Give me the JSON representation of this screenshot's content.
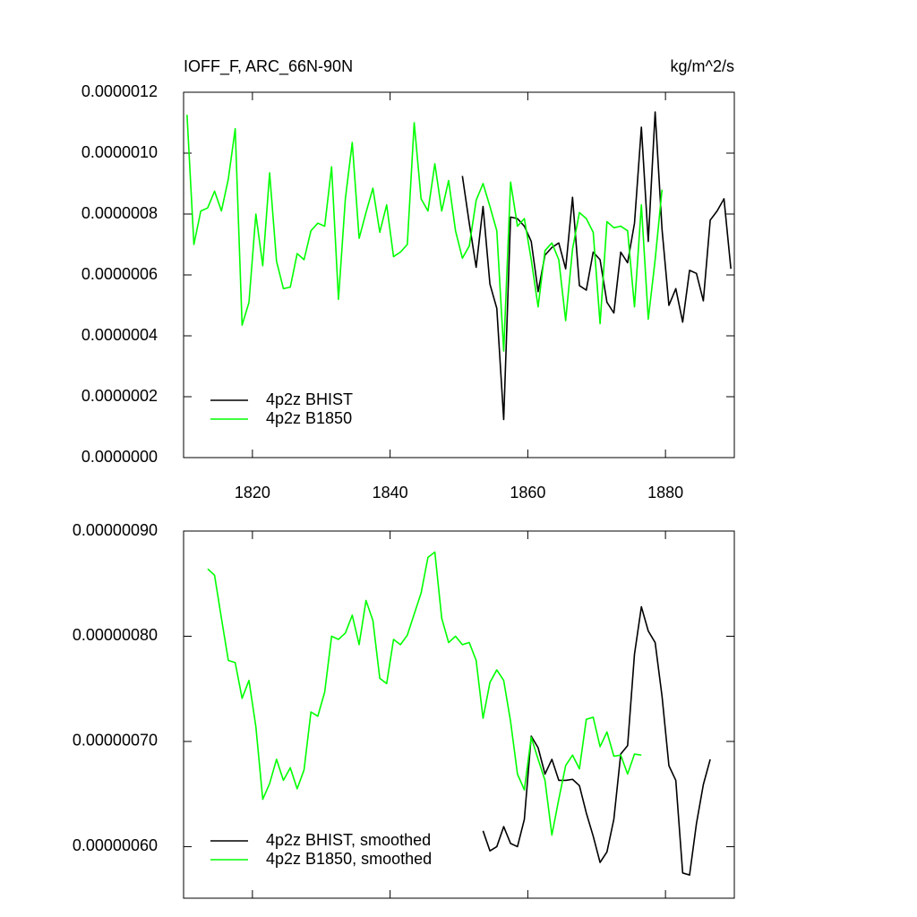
{
  "chart_data": [
    {
      "type": "line",
      "title": "IOFF_F, ARC_66N-90N",
      "units": "kg/m^2/s",
      "xlim": [
        1810,
        1890
      ],
      "ylim": [
        0,
        1.2e-06
      ],
      "xticks": [
        1820,
        1840,
        1860,
        1880
      ],
      "xtick_labels": true,
      "yticks": [
        {
          "value": 0,
          "label": "0.0000000"
        },
        {
          "value": 2e-07,
          "label": "0.0000002"
        },
        {
          "value": 4e-07,
          "label": "0.0000004"
        },
        {
          "value": 6e-07,
          "label": "0.0000006"
        },
        {
          "value": 8e-07,
          "label": "0.0000008"
        },
        {
          "value": 1e-06,
          "label": "0.0000010"
        },
        {
          "value": 1.2e-06,
          "label": "0.0000012"
        }
      ],
      "legend": "lower left",
      "series": [
        {
          "name": "4p2z BHIST",
          "color": "#000000",
          "x": [
            1850.5,
            1851.5,
            1852.5,
            1853.5,
            1854.5,
            1855.5,
            1856.5,
            1857.5,
            1858.5,
            1859.5,
            1860.5,
            1861.5,
            1862.5,
            1863.5,
            1864.5,
            1865.5,
            1866.5,
            1867.5,
            1868.5,
            1869.5,
            1870.5,
            1871.5,
            1872.5,
            1873.5,
            1874.5,
            1875.5,
            1876.5,
            1877.5,
            1878.5,
            1879.5,
            1880.5,
            1881.5,
            1882.5,
            1883.5,
            1884.5,
            1885.5,
            1886.5,
            1887.5,
            1888.5,
            1889.5
          ],
          "values": [
            9.25e-07,
            7.7e-07,
            6.25e-07,
            8.25e-07,
            5.7e-07,
            4.9e-07,
            1.25e-07,
            7.9e-07,
            7.85e-07,
            7.6e-07,
            7.1e-07,
            5.45e-07,
            6.65e-07,
            6.9e-07,
            7.05e-07,
            6.2e-07,
            8.55e-07,
            5.65e-07,
            5.5e-07,
            6.75e-07,
            6.5e-07,
            5.1e-07,
            4.75e-07,
            6.75e-07,
            6.4e-07,
            7.7e-07,
            1.085e-06,
            7.1e-07,
            1.135e-06,
            7.5e-07,
            5e-07,
            5.55e-07,
            4.45e-07,
            6.15e-07,
            6.05e-07,
            5.15e-07,
            7.8e-07,
            8.1e-07,
            8.5e-07,
            6.2e-07
          ]
        },
        {
          "name": "4p2z B1850",
          "color": "#00ff00",
          "x": [
            1810.5,
            1811.5,
            1812.5,
            1813.5,
            1814.5,
            1815.5,
            1816.5,
            1817.5,
            1818.5,
            1819.5,
            1820.5,
            1821.5,
            1822.5,
            1823.5,
            1824.5,
            1825.5,
            1826.5,
            1827.5,
            1828.5,
            1829.5,
            1830.5,
            1831.5,
            1832.5,
            1833.5,
            1834.5,
            1835.5,
            1836.5,
            1837.5,
            1838.5,
            1839.5,
            1840.5,
            1841.5,
            1842.5,
            1843.5,
            1844.5,
            1845.5,
            1846.5,
            1847.5,
            1848.5,
            1849.5,
            1850.5,
            1851.5,
            1852.5,
            1853.5,
            1854.5,
            1855.5,
            1856.5,
            1857.5,
            1858.5,
            1859.5,
            1860.5,
            1861.5,
            1862.5,
            1863.5,
            1864.5,
            1865.5,
            1866.5,
            1867.5,
            1868.5,
            1869.5,
            1870.5,
            1871.5,
            1872.5,
            1873.5,
            1874.5,
            1875.5,
            1876.5,
            1877.5,
            1878.5,
            1879.5
          ],
          "values": [
            1.126e-06,
            7e-07,
            8.1e-07,
            8.2e-07,
            8.75e-07,
            8.1e-07,
            9.15e-07,
            1.08e-06,
            4.35e-07,
            5.1e-07,
            8e-07,
            6.3e-07,
            9.35e-07,
            6.45e-07,
            5.55e-07,
            5.6e-07,
            6.7e-07,
            6.5e-07,
            7.45e-07,
            7.7e-07,
            7.6e-07,
            9.55e-07,
            5.2e-07,
            8.5e-07,
            1.035e-06,
            7.2e-07,
            8.05e-07,
            8.85e-07,
            7.4e-07,
            8.3e-07,
            6.6e-07,
            6.75e-07,
            7e-07,
            1.1e-06,
            8.5e-07,
            8.1e-07,
            9.65e-07,
            8.1e-07,
            9.1e-07,
            7.45e-07,
            6.55e-07,
            6.95e-07,
            8.45e-07,
            9e-07,
            8.25e-07,
            7.45e-07,
            3.5e-07,
            9.05e-07,
            7.6e-07,
            7.85e-07,
            6.5e-07,
            4.95e-07,
            6.8e-07,
            7.05e-07,
            6.5e-07,
            4.5e-07,
            6.85e-07,
            8.05e-07,
            7.85e-07,
            7.4e-07,
            4.4e-07,
            7.75e-07,
            7.55e-07,
            7.6e-07,
            7.45e-07,
            4.95e-07,
            8.3e-07,
            4.55e-07,
            6.5e-07,
            8.8e-07
          ]
        }
      ]
    },
    {
      "type": "line",
      "xlim": [
        1810,
        1890
      ],
      "ylim": [
        5.51e-07,
        9e-07
      ],
      "xticks": [
        1820,
        1840,
        1860,
        1880
      ],
      "xtick_labels": false,
      "yticks": [
        {
          "value": 6e-07,
          "label": "0.00000060"
        },
        {
          "value": 7e-07,
          "label": "0.00000070"
        },
        {
          "value": 8e-07,
          "label": "0.00000080"
        },
        {
          "value": 9e-07,
          "label": "0.00000090"
        }
      ],
      "legend": "lower left",
      "series": [
        {
          "name": "4p2z BHIST, smoothed",
          "color": "#000000",
          "x": [
            1853.5,
            1854.5,
            1855.5,
            1856.5,
            1857.5,
            1858.5,
            1859.5,
            1860.5,
            1861.5,
            1862.5,
            1863.5,
            1864.5,
            1865.5,
            1866.5,
            1867.5,
            1868.5,
            1869.5,
            1870.5,
            1871.5,
            1872.5,
            1873.5,
            1874.5,
            1875.5,
            1876.5,
            1877.5,
            1878.5,
            1879.5,
            1880.5,
            1881.5,
            1882.5,
            1883.5,
            1884.5,
            1885.5,
            1886.5
          ],
          "values": [
            6.15e-07,
            5.96e-07,
            6e-07,
            6.19e-07,
            6.03e-07,
            6e-07,
            6.26e-07,
            7.05e-07,
            6.94e-07,
            6.69e-07,
            6.83e-07,
            6.63e-07,
            6.63e-07,
            6.64e-07,
            6.58e-07,
            6.32e-07,
            6.1e-07,
            5.85e-07,
            5.95e-07,
            6.26e-07,
            6.88e-07,
            6.96e-07,
            7.83e-07,
            8.28e-07,
            8.05e-07,
            7.94e-07,
            7.43e-07,
            6.77e-07,
            6.63e-07,
            5.75e-07,
            5.73e-07,
            6.22e-07,
            6.59e-07,
            6.83e-07
          ]
        },
        {
          "name": "4p2z B1850, smoothed",
          "color": "#00ff00",
          "x": [
            1813.5,
            1814.5,
            1815.5,
            1816.5,
            1817.5,
            1818.5,
            1819.5,
            1820.5,
            1821.5,
            1822.5,
            1823.5,
            1824.5,
            1825.5,
            1826.5,
            1827.5,
            1828.5,
            1829.5,
            1830.5,
            1831.5,
            1832.5,
            1833.5,
            1834.5,
            1835.5,
            1836.5,
            1837.5,
            1838.5,
            1839.5,
            1840.5,
            1841.5,
            1842.5,
            1843.5,
            1844.5,
            1845.5,
            1846.5,
            1847.5,
            1848.5,
            1849.5,
            1850.5,
            1851.5,
            1852.5,
            1853.5,
            1854.5,
            1855.5,
            1856.5,
            1857.5,
            1858.5,
            1859.5,
            1860.5,
            1861.5,
            1862.5,
            1863.5,
            1864.5,
            1865.5,
            1866.5,
            1867.5,
            1868.5,
            1869.5,
            1870.5,
            1871.5,
            1872.5,
            1873.5,
            1874.5,
            1875.5,
            1876.5
          ],
          "values": [
            8.64e-07,
            8.58e-07,
            8.17e-07,
            7.77e-07,
            7.75e-07,
            7.41e-07,
            7.58e-07,
            7.14e-07,
            6.45e-07,
            6.6e-07,
            6.83e-07,
            6.63e-07,
            6.75e-07,
            6.55e-07,
            6.73e-07,
            7.28e-07,
            7.24e-07,
            7.47e-07,
            8e-07,
            7.97e-07,
            8.03e-07,
            8.2e-07,
            7.92e-07,
            8.34e-07,
            8.15e-07,
            7.6e-07,
            7.55e-07,
            7.97e-07,
            7.92e-07,
            8.01e-07,
            8.21e-07,
            8.41e-07,
            8.75e-07,
            8.8e-07,
            8.17e-07,
            7.94e-07,
            8e-07,
            7.92e-07,
            7.94e-07,
            7.77e-07,
            7.22e-07,
            7.56e-07,
            7.68e-07,
            7.58e-07,
            7.19e-07,
            6.69e-07,
            6.54e-07,
            7.04e-07,
            6.83e-07,
            6.63e-07,
            6.11e-07,
            6.45e-07,
            6.77e-07,
            6.87e-07,
            6.74e-07,
            7.21e-07,
            7.23e-07,
            6.95e-07,
            7.09e-07,
            6.86e-07,
            6.87e-07,
            6.69e-07,
            6.88e-07,
            6.87e-07
          ]
        }
      ]
    }
  ]
}
